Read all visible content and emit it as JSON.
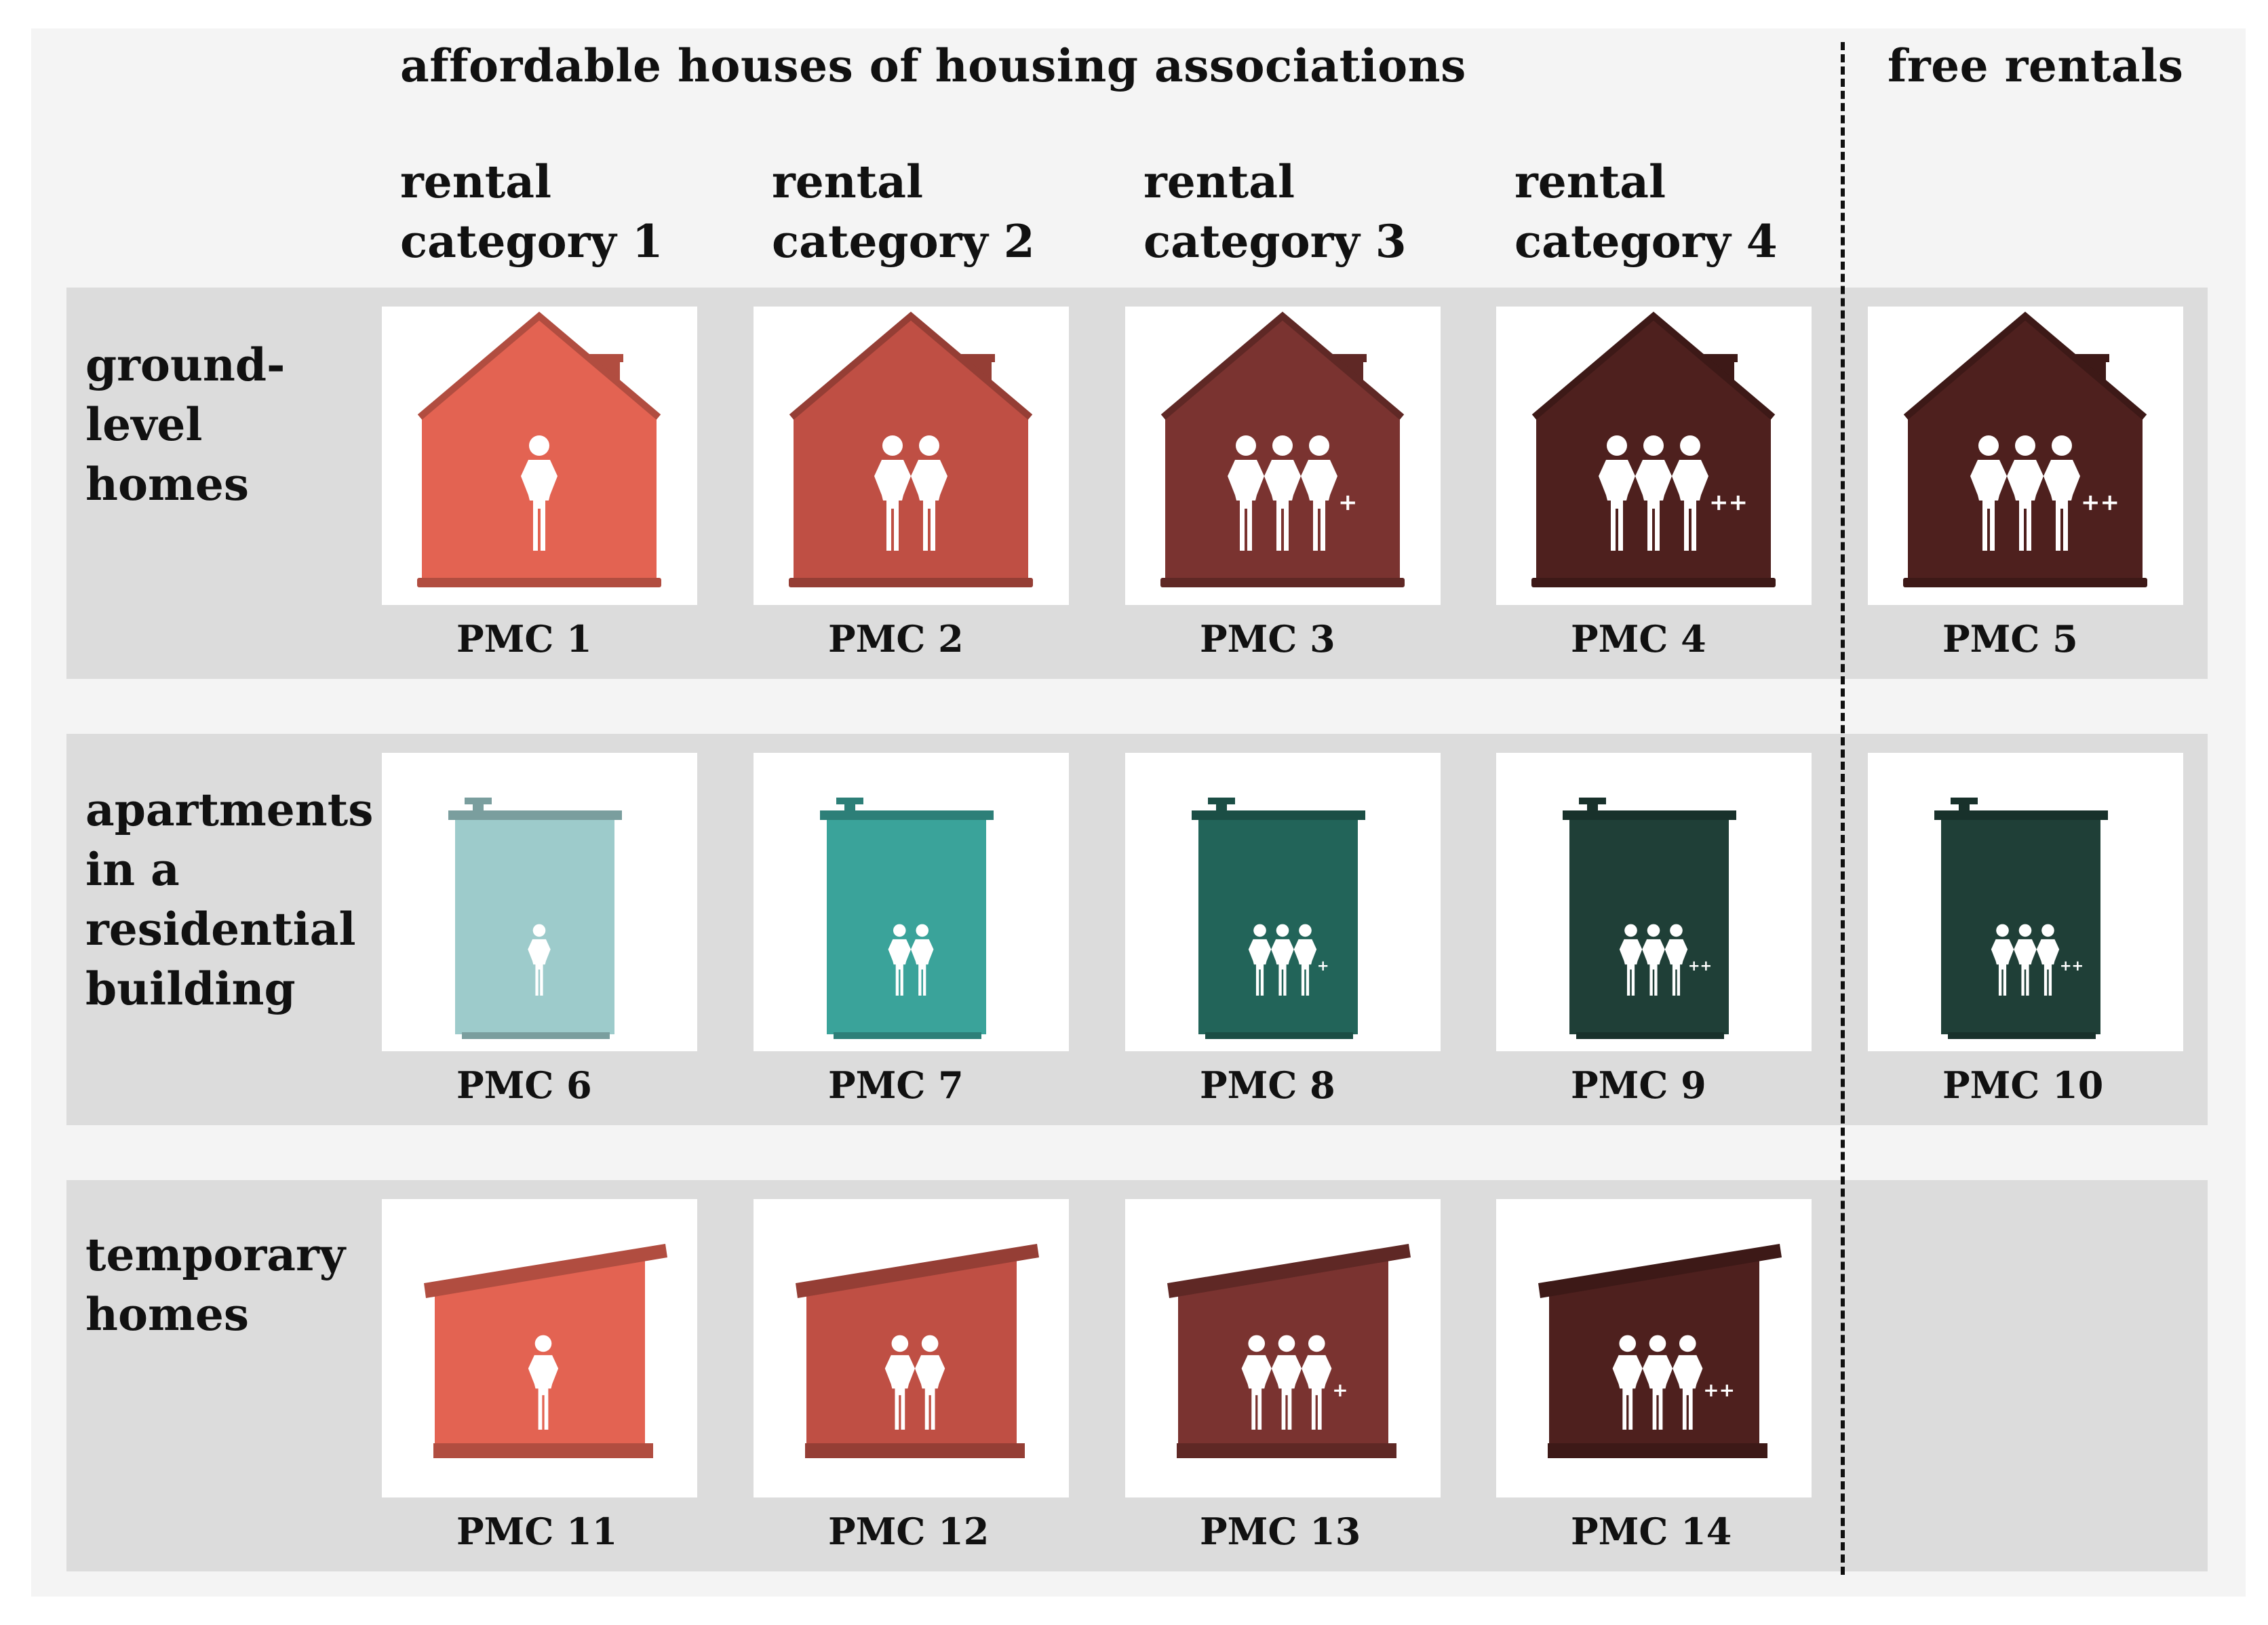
{
  "header": {
    "affordable_title": "affordable houses of housing associations",
    "free_title": "free rentals"
  },
  "columns": [
    {
      "line1": "rental",
      "line2": "category 1"
    },
    {
      "line1": "rental",
      "line2": "category 2"
    },
    {
      "line1": "rental",
      "line2": "category 3"
    },
    {
      "line1": "rental",
      "line2": "category 4"
    }
  ],
  "rows": [
    {
      "lines": [
        "ground-",
        "level",
        "homes"
      ]
    },
    {
      "lines": [
        "apartments",
        "in a",
        "residential",
        "building"
      ]
    },
    {
      "lines": [
        "temporary",
        "homes"
      ]
    }
  ],
  "cells": [
    {
      "label": "PMC 1",
      "shape": "house-icon",
      "people": 1,
      "plus": "",
      "color": "#e36352"
    },
    {
      "label": "PMC 2",
      "shape": "house-icon",
      "people": 2,
      "plus": "",
      "color": "#bf4f44"
    },
    {
      "label": "PMC 3",
      "shape": "house-icon",
      "people": 3,
      "plus": "+",
      "color": "#7a3330"
    },
    {
      "label": "PMC 4",
      "shape": "house-icon",
      "people": 3,
      "plus": "++",
      "color": "#4e201e"
    },
    {
      "label": "PMC 5",
      "shape": "house-icon",
      "people": 3,
      "plus": "++",
      "color": "#4e201e"
    },
    {
      "label": "PMC 6",
      "shape": "apartment-icon",
      "people": 1,
      "plus": "",
      "color": "#9dcbcb"
    },
    {
      "label": "PMC 7",
      "shape": "apartment-icon",
      "people": 2,
      "plus": "",
      "color": "#3aa39a"
    },
    {
      "label": "PMC 8",
      "shape": "apartment-icon",
      "people": 3,
      "plus": "+",
      "color": "#226459"
    },
    {
      "label": "PMC 9",
      "shape": "apartment-icon",
      "people": 3,
      "plus": "++",
      "color": "#1f3f37"
    },
    {
      "label": "PMC 10",
      "shape": "apartment-icon",
      "people": 3,
      "plus": "++",
      "color": "#1f3f37"
    },
    {
      "label": "PMC 11",
      "shape": "cabin-icon",
      "people": 1,
      "plus": "",
      "color": "#e36352"
    },
    {
      "label": "PMC 12",
      "shape": "cabin-icon",
      "people": 2,
      "plus": "",
      "color": "#bf4f44"
    },
    {
      "label": "PMC 13",
      "shape": "cabin-icon",
      "people": 3,
      "plus": "+",
      "color": "#7a3330"
    },
    {
      "label": "PMC 14",
      "shape": "cabin-icon",
      "people": 3,
      "plus": "++",
      "color": "#4e201e"
    }
  ]
}
